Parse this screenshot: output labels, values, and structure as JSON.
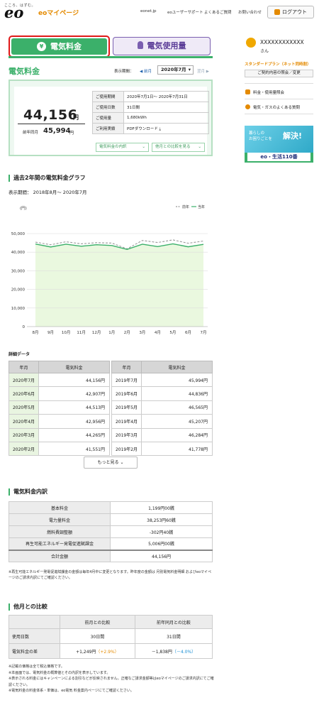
{
  "header": {
    "tagline": "こころ、はずむ。",
    "logo": "eo",
    "mypage": "eoマイページ",
    "links": [
      "eonet.jp",
      "eoユーザーサポート",
      "よくあるご質問",
      "お問い合わせ"
    ],
    "logout": "ログアウト"
  },
  "tabs": {
    "electricity_fee": "電気料金",
    "electricity_usage": "電気使用量"
  },
  "page_title": "電気料金",
  "period": {
    "label": "表示期間：",
    "prev": "前月",
    "selected": "2020年7月",
    "next": "翌月"
  },
  "summary": {
    "amount": "44,156",
    "unit": "円",
    "prev_year_label": "前年同月",
    "prev_year_amount": "45,994",
    "prev_year_unit": "円",
    "rows": [
      {
        "key": "ご使用期間",
        "value": "2020年7月1日～ 2020年7月31日"
      },
      {
        "key": "ご使用日数",
        "value": "31日間"
      },
      {
        "key": "ご使用量",
        "value": "1,680kWh"
      },
      {
        "key": "ご利用実績",
        "value": "PDFダウンロード"
      }
    ],
    "breakdown_button": "電気料金の内訳",
    "compare_button": "他月との比較を見る"
  },
  "sidebar": {
    "user_name": "XXXXXXXXXXXX",
    "user_suffix": "さん",
    "plan": "スタンダードプラン（ネット同時割）",
    "change_plan": "ご契約内容の照会／変更",
    "links": [
      "料金・使用量照会",
      "電気・ガスのよくある質問"
    ],
    "banner": {
      "line1": "暮らしの",
      "line2": "お困りごとを",
      "headline": "解決!",
      "footer": "eo・生活110番"
    }
  },
  "graph": {
    "title": "過去2年間の電気料金グラフ",
    "period": "表示期間： 2018年8月～ 2020年7月"
  },
  "chart_data": {
    "type": "line",
    "ylabel": "(円)",
    "ylim": [
      0,
      50000
    ],
    "yticks": [
      "50,000",
      "40,000",
      "30,000",
      "20,000",
      "10,000",
      "0"
    ],
    "categories": [
      "8月",
      "9月",
      "10月",
      "11月",
      "12月",
      "1月",
      "2月",
      "3月",
      "4月",
      "5月",
      "6月",
      "7月"
    ],
    "series": [
      {
        "name": "前年",
        "color": "#999999",
        "style": "dashed",
        "values": [
          45400,
          44000,
          45600,
          44500,
          45100,
          44900,
          41800,
          46300,
          45200,
          46600,
          44800,
          46000
        ]
      },
      {
        "name": "当年",
        "color": "#3bb06a",
        "style": "solid",
        "values": [
          44400,
          42800,
          44300,
          43200,
          44000,
          43600,
          41500,
          44300,
          43000,
          44500,
          42900,
          44200
        ]
      }
    ],
    "fill": "#eaf8df",
    "grid": true,
    "legend": "top-right"
  },
  "detail": {
    "title": "詳細データ",
    "headers": [
      "年月",
      "電気料金",
      "年月",
      "電気料金"
    ],
    "rows": [
      [
        "2020年7月",
        "44,156円",
        "2019年7月",
        "45,994円"
      ],
      [
        "2020年6月",
        "42,907円",
        "2019年6月",
        "44,836円"
      ],
      [
        "2020年5月",
        "44,513円",
        "2019年5月",
        "46,565円"
      ],
      [
        "2020年4月",
        "42,956円",
        "2019年4月",
        "45,207円"
      ],
      [
        "2020年3月",
        "44,265円",
        "2019年3月",
        "46,284円"
      ],
      [
        "2020年2月",
        "41,551円",
        "2019年2月",
        "41,778円"
      ]
    ],
    "more": "もっと見る"
  },
  "breakdown": {
    "title": "電気料金内訳",
    "rows": [
      [
        "基本料金",
        "1,199円00銭"
      ],
      [
        "電力量料金",
        "38,253円60銭"
      ],
      [
        "燃料費調整額",
        "-302円40銭"
      ],
      [
        "再生可能エネルギー発電促進賦課金",
        "5,006円00銭"
      ]
    ],
    "total": [
      "合計金額",
      "44,156円"
    ],
    "note": "※再生可能エネルギー発電促進賦課金の金額は毎年4月中に変更となります。昨年度の金額は 月別電気料金明細 およびeoマイページのご請求内訳にてご確認ください。"
  },
  "comparison": {
    "title": "他月との比較",
    "headers": [
      "",
      "前月との比較",
      "前年同月との比較"
    ],
    "rows": [
      {
        "label": "使用日数",
        "prev_month": "30日間",
        "prev_year": "31日間"
      },
      {
        "label": "電気料金の差",
        "prev_month": "+1,249円",
        "prev_month_pct": "（+2.9%）",
        "prev_year": "－1,838円",
        "prev_year_pct": "（－4.0%）"
      }
    ]
  },
  "notes": [
    "※記載の価格は全て税込価格です。",
    "※本画面では、電気料金の概算値とその内訳を表示しています。",
    "※表示される料金にはキャンペーンによる割引などが反映されません。正確なご請求金額等はeoマイページのご請求内訳にてご確認ください。",
    "※電気料金の料金体系・単価は、eo電気 料金案内ページにてご確認ください。"
  ],
  "colors": {
    "brand_green": "#3bb06a",
    "accent_orange": "#e48a00",
    "usage_purple": "#7a5fb0",
    "highlight_red": "#e01818"
  }
}
